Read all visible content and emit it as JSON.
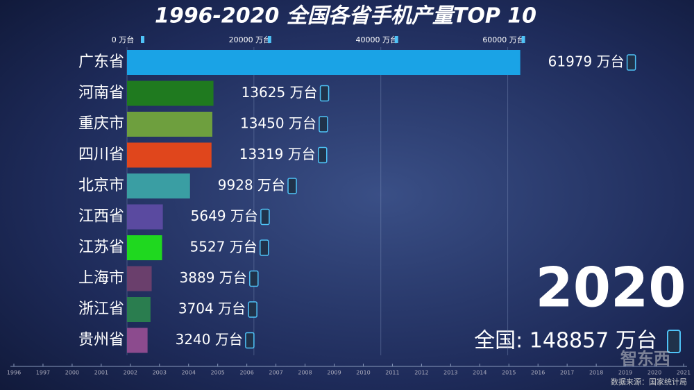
{
  "chart_data": {
    "type": "hbar",
    "title": "1996-2020 全国各省手机产量TOP 10",
    "categories": [
      "广东省",
      "河南省",
      "重庆市",
      "四川省",
      "北京市",
      "江西省",
      "江苏省",
      "上海市",
      "浙江省",
      "贵州省"
    ],
    "values": [
      61979,
      13625,
      13450,
      13319,
      9928,
      5649,
      5527,
      3889,
      3704,
      3240
    ],
    "value_labels": [
      "61979 万台",
      "13625 万台",
      "13450 万台",
      "13319 万台",
      "9928 万台",
      "5649 万台",
      "5527 万台",
      "3889 万台",
      "3704 万台",
      "3240 万台"
    ],
    "colors": [
      "#1aa3e6",
      "#1f7a1f",
      "#6e9f3e",
      "#e0461c",
      "#3a9ea3",
      "#5a4aa0",
      "#1fd81f",
      "#6a3f6c",
      "#2a7d4f",
      "#8c4b8e"
    ],
    "xlim": [
      0,
      70000
    ],
    "xticks": [
      {
        "value": 0,
        "label": "0 万台"
      },
      {
        "value": 20000,
        "label": "20000 万台"
      },
      {
        "value": 40000,
        "label": "40000 万台"
      },
      {
        "value": 60000,
        "label": "60000 万台"
      }
    ],
    "grid": true
  },
  "year": "2020",
  "total": "全国: 148857 万台",
  "timeline": [
    1996,
    1997,
    2000,
    2001,
    2002,
    2003,
    2004,
    2005,
    2006,
    2007,
    2008,
    2009,
    2010,
    2011,
    2012,
    2013,
    2014,
    2015,
    2016,
    2017,
    2018,
    2019,
    2020,
    2021
  ],
  "source": "数据来源：国家统计局",
  "watermark": "智东西"
}
